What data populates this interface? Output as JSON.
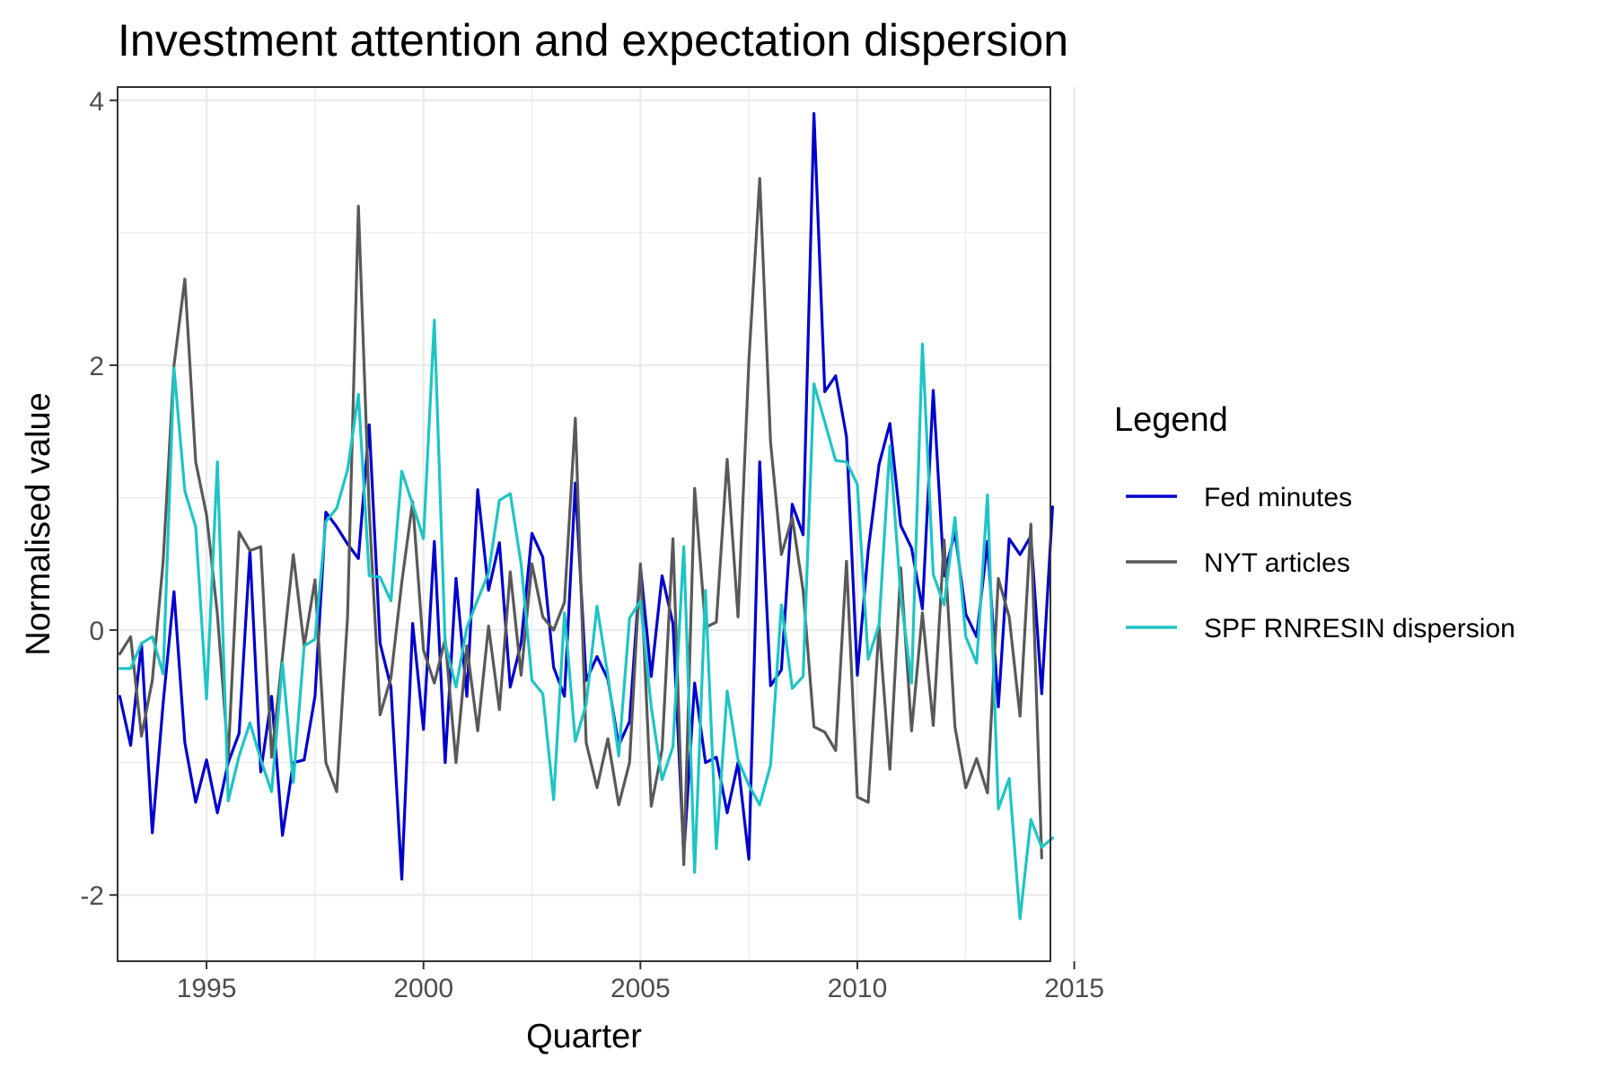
{
  "chart_data": {
    "type": "line",
    "title": "Investment attention and expectation dispersion",
    "xlabel": "Quarter",
    "ylabel": "Normalised value",
    "xlim": [
      1992.95,
      2014.45
    ],
    "ylim": [
      -2.5,
      4.1
    ],
    "x_ticks": [
      1995,
      2000,
      2005,
      2010,
      2015
    ],
    "y_ticks": [
      -2,
      0,
      2,
      4
    ],
    "grid": true,
    "legend": {
      "title": "Legend",
      "position": "right"
    },
    "x_start": 1993.0,
    "x_step": 0.25,
    "series": [
      {
        "name": "Fed minutes",
        "color": "#0000CD",
        "values": [
          -0.5,
          -0.87,
          -0.1,
          -1.53,
          -0.55,
          0.29,
          -0.85,
          -1.3,
          -0.98,
          -1.38,
          -1.0,
          -0.78,
          0.6,
          -1.07,
          -0.5,
          -1.55,
          -1.0,
          -0.98,
          -0.5,
          0.89,
          0.78,
          0.65,
          0.54,
          1.55,
          -0.1,
          -0.43,
          -1.88,
          0.05,
          -0.75,
          0.67,
          -1.0,
          0.39,
          -0.5,
          1.06,
          0.3,
          0.66,
          -0.43,
          -0.1,
          0.73,
          0.55,
          -0.28,
          -0.5,
          1.11,
          -0.38,
          -0.2,
          -0.37,
          -0.87,
          -0.69,
          0.48,
          -0.35,
          0.41,
          0.05,
          -1.7,
          -0.4,
          -1.0,
          -0.96,
          -1.38,
          -1.0,
          -1.73,
          1.27,
          -0.42,
          -0.3,
          0.95,
          0.72,
          3.9,
          1.8,
          1.92,
          1.46,
          -0.34,
          0.6,
          1.25,
          1.56,
          0.79,
          0.62,
          0.16,
          1.81,
          0.41,
          0.74,
          0.12,
          -0.05,
          0.67,
          -0.58,
          0.69,
          0.57,
          0.71,
          -0.48,
          0.93
        ]
      },
      {
        "name": "NYT articles",
        "color": "#595959",
        "values": [
          -0.18,
          -0.05,
          -0.8,
          -0.38,
          0.52,
          2.0,
          2.65,
          1.27,
          0.87,
          0.12,
          -0.96,
          0.74,
          0.6,
          0.63,
          -0.96,
          -0.2,
          0.57,
          -0.12,
          0.38,
          -1.0,
          -1.22,
          0.1,
          3.2,
          0.9,
          -0.64,
          -0.36,
          0.36,
          0.97,
          -0.15,
          -0.4,
          -0.07,
          -1.0,
          -0.12,
          -0.76,
          0.03,
          -0.6,
          0.44,
          -0.34,
          0.5,
          0.1,
          0.0,
          0.21,
          1.6,
          -0.85,
          -1.19,
          -0.82,
          -1.32,
          -1.0,
          0.5,
          -1.33,
          -0.9,
          0.69,
          -1.77,
          1.07,
          0.02,
          0.06,
          1.29,
          0.1,
          2.03,
          3.41,
          1.42,
          0.57,
          0.85,
          0.3,
          -0.73,
          -0.77,
          -0.91,
          0.52,
          -1.26,
          -1.3,
          0.03,
          -1.05,
          0.47,
          -0.76,
          0.13,
          -0.72,
          0.68,
          -0.73,
          -1.19,
          -0.97,
          -1.23,
          0.39,
          0.1,
          -0.65,
          0.8,
          -1.72
        ]
      },
      {
        "name": "SPF RNRESIN dispersion",
        "color": "#1FC4C4",
        "values": [
          -0.29,
          -0.29,
          -0.1,
          -0.05,
          -0.33,
          1.98,
          1.05,
          0.78,
          -0.52,
          1.27,
          -1.29,
          -0.95,
          -0.7,
          -0.98,
          -1.22,
          -0.25,
          -1.15,
          -0.12,
          -0.07,
          0.82,
          0.92,
          1.21,
          1.78,
          0.41,
          0.4,
          0.22,
          1.2,
          0.95,
          0.69,
          2.34,
          -0.1,
          -0.43,
          0.02,
          0.23,
          0.43,
          0.98,
          1.03,
          0.5,
          -0.38,
          -0.48,
          -1.28,
          0.13,
          -0.84,
          -0.56,
          0.18,
          -0.34,
          -0.95,
          0.09,
          0.22,
          -0.58,
          -1.13,
          -0.88,
          0.63,
          -1.83,
          0.3,
          -1.65,
          -0.46,
          -0.98,
          -1.17,
          -1.32,
          -1.02,
          0.19,
          -0.44,
          -0.35,
          1.86,
          1.57,
          1.28,
          1.27,
          1.1,
          -0.22,
          0.04,
          1.39,
          0.26,
          -0.4,
          2.16,
          0.42,
          0.19,
          0.85,
          -0.05,
          -0.25,
          1.02,
          -1.35,
          -1.12,
          -2.18,
          -1.43,
          -1.64,
          -1.57
        ]
      }
    ]
  }
}
